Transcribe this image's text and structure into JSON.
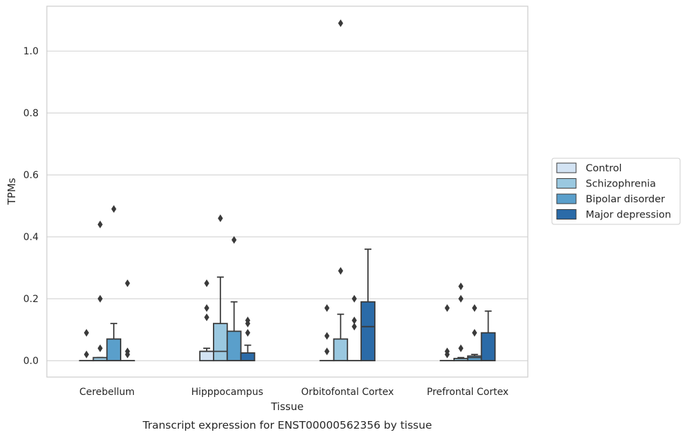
{
  "chart_data": {
    "type": "box",
    "xlabel": "Tissue",
    "ylabel": "TPMs",
    "caption": "Transcript expression for ENST00000562356 by tissue",
    "ylim": [
      -0.053,
      1.145
    ],
    "yticks": [
      0.0,
      0.2,
      0.4,
      0.6,
      0.8,
      1.0
    ],
    "ytick_labels": [
      "0.0",
      "0.2",
      "0.4",
      "0.6",
      "0.8",
      "1.0"
    ],
    "grid": "horizontal",
    "legend_position": "right",
    "categories": [
      "Cerebellum",
      "Hipppocampus",
      "Orbitofontal Cortex",
      "Prefrontal Cortex"
    ],
    "series": [
      {
        "name": "Control",
        "color": "#d3e3f3",
        "boxes": [
          {
            "q1": 0,
            "median": 0,
            "q3": 0,
            "whislo": 0,
            "whishi": 0,
            "fliers": [
              0.09,
              0.02
            ]
          },
          {
            "q1": 0,
            "median": 0.03,
            "q3": 0.03,
            "whislo": 0,
            "whishi": 0.04,
            "fliers": [
              0.25,
              0.17,
              0.14
            ]
          },
          {
            "q1": 0,
            "median": 0,
            "q3": 0,
            "whislo": 0,
            "whishi": 0,
            "fliers": [
              0.17,
              0.08,
              0.03
            ]
          },
          {
            "q1": 0,
            "median": 0,
            "q3": 0,
            "whislo": 0,
            "whishi": 0,
            "fliers": [
              0.17,
              0.03,
              0.02
            ]
          }
        ]
      },
      {
        "name": "Schizophrenia",
        "color": "#9ac8e0",
        "boxes": [
          {
            "q1": 0,
            "median": 0,
            "q3": 0.01,
            "whislo": 0,
            "whishi": 0.01,
            "fliers": [
              0.44,
              0.2,
              0.04
            ]
          },
          {
            "q1": 0,
            "median": 0.03,
            "q3": 0.12,
            "whislo": 0,
            "whishi": 0.27,
            "fliers": [
              0.46
            ]
          },
          {
            "q1": 0,
            "median": 0,
            "q3": 0.07,
            "whislo": 0,
            "whishi": 0.15,
            "fliers": [
              1.09,
              0.29
            ]
          },
          {
            "q1": 0,
            "median": 0,
            "q3": 0.007,
            "whislo": 0,
            "whishi": 0.01,
            "fliers": [
              0.24,
              0.2,
              0.04
            ]
          }
        ]
      },
      {
        "name": "Bipolar disorder",
        "color": "#5a9fcb",
        "boxes": [
          {
            "q1": 0,
            "median": 0,
            "q3": 0.07,
            "whislo": 0,
            "whishi": 0.12,
            "fliers": [
              0.49
            ]
          },
          {
            "q1": 0,
            "median": 0,
            "q3": 0.095,
            "whislo": 0,
            "whishi": 0.19,
            "fliers": [
              0.39
            ]
          },
          {
            "q1": 0,
            "median": 0,
            "q3": 0,
            "whislo": 0,
            "whishi": 0,
            "fliers": [
              0.2,
              0.13,
              0.11
            ]
          },
          {
            "q1": 0,
            "median": 0.01,
            "q3": 0.015,
            "whislo": 0,
            "whishi": 0.02,
            "fliers": [
              0.17,
              0.09
            ]
          }
        ]
      },
      {
        "name": "Major depression",
        "color": "#2b6ba8",
        "boxes": [
          {
            "q1": 0,
            "median": 0,
            "q3": 0,
            "whislo": 0,
            "whishi": 0,
            "fliers": [
              0.25,
              0.03,
              0.02
            ]
          },
          {
            "q1": 0,
            "median": 0,
            "q3": 0.025,
            "whislo": 0,
            "whishi": 0.05,
            "fliers": [
              0.13,
              0.12,
              0.09
            ]
          },
          {
            "q1": 0,
            "median": 0.11,
            "q3": 0.19,
            "whislo": 0,
            "whishi": 0.36,
            "fliers": []
          },
          {
            "q1": 0,
            "median": 0,
            "q3": 0.09,
            "whislo": 0,
            "whishi": 0.16,
            "fliers": []
          }
        ]
      }
    ]
  }
}
